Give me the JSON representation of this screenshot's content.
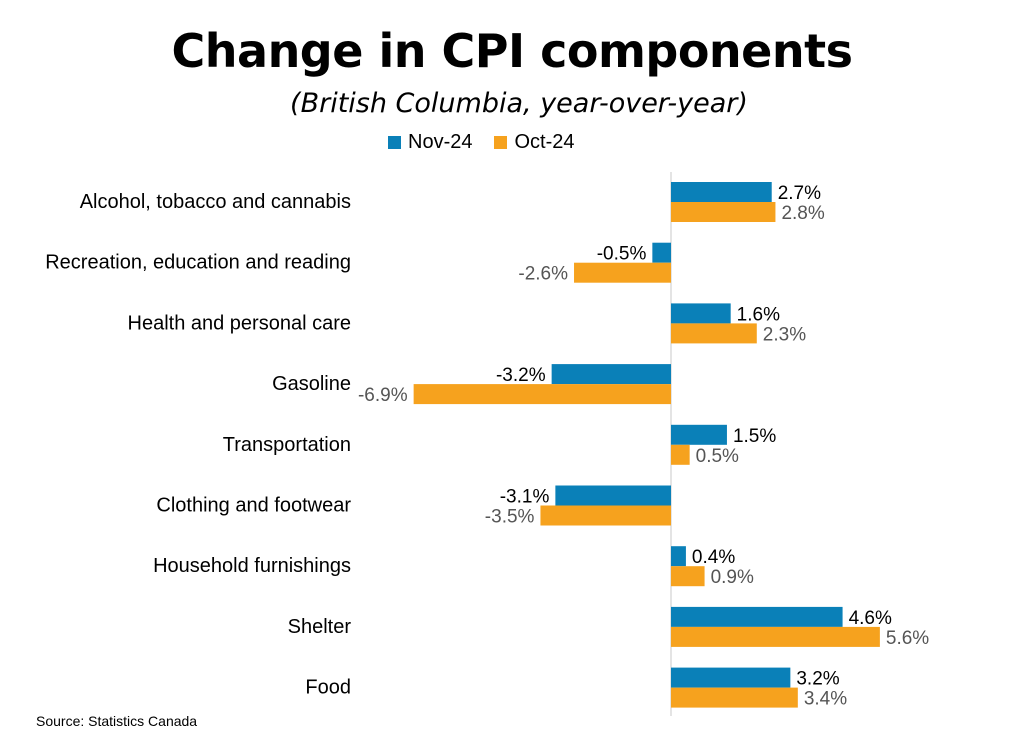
{
  "colors": {
    "nov": "#0A80B8",
    "oct": "#F6A21E",
    "axis": "#C8C8C8",
    "label_nov": "#000000",
    "label_oct": "#555555"
  },
  "source": "Source: Statistics Canada",
  "chart_data": {
    "type": "bar",
    "orientation": "horizontal",
    "title": "Change in CPI components",
    "subtitle": "(British Columbia, year-over-year)",
    "legend_position": "top",
    "grid": false,
    "xlim": [
      -6.9,
      5.6
    ],
    "categories": [
      "Alcohol, tobacco and cannabis",
      "Recreation, education and reading",
      "Health and personal care",
      "Gasoline",
      "Transportation",
      "Clothing and footwear",
      "Household furnishings",
      "Shelter",
      "Food"
    ],
    "series": [
      {
        "name": "Nov-24",
        "values": [
          2.7,
          -0.5,
          1.6,
          -3.2,
          1.5,
          -3.1,
          0.4,
          4.6,
          3.2
        ],
        "labels": [
          "2.7%",
          "-0.5%",
          "1.6%",
          "-3.2%",
          "1.5%",
          "-3.1%",
          "0.4%",
          "4.6%",
          "3.2%"
        ]
      },
      {
        "name": "Oct-24",
        "values": [
          2.8,
          -2.6,
          2.3,
          -6.9,
          0.5,
          -3.5,
          0.9,
          5.6,
          3.4
        ],
        "labels": [
          "2.8%",
          "-2.6%",
          "2.3%",
          "-6.9%",
          "0.5%",
          "-3.5%",
          "0.9%",
          "5.6%",
          "3.4%"
        ]
      }
    ]
  }
}
